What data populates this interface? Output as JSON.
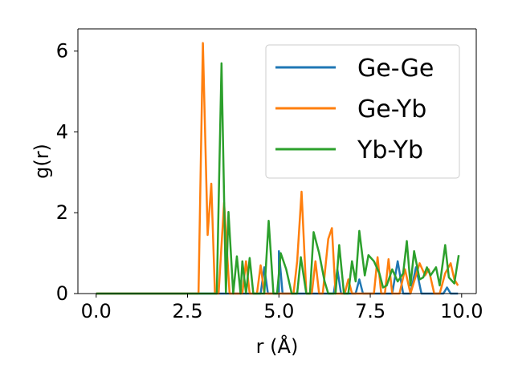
{
  "chart_data": {
    "type": "line",
    "xlabel": "r (Å)",
    "ylabel": "g(r)",
    "xlim": [
      -0.5,
      10.4
    ],
    "ylim": [
      0,
      6.55
    ],
    "xticks": [
      0.0,
      2.5,
      5.0,
      7.5,
      10.0
    ],
    "xtick_labels": [
      "0.0",
      "2.5",
      "5.0",
      "7.5",
      "10.0"
    ],
    "yticks": [
      0,
      2,
      4,
      6
    ],
    "ytick_labels": [
      "0",
      "2",
      "4",
      "6"
    ],
    "grid": false,
    "legend_position": "top-right",
    "series": [
      {
        "name": "Ge-Ge",
        "color": "#1f77b4",
        "points": [
          [
            0,
            0
          ],
          [
            4.5,
            0
          ],
          [
            4.6,
            0.65
          ],
          [
            4.7,
            0
          ],
          [
            5.0,
            0
          ],
          [
            5.0,
            1.05
          ],
          [
            5.1,
            0
          ],
          [
            6.5,
            0
          ],
          [
            6.6,
            0.6
          ],
          [
            6.7,
            0
          ],
          [
            7.1,
            0
          ],
          [
            7.2,
            0.35
          ],
          [
            7.3,
            0
          ],
          [
            8.1,
            0
          ],
          [
            8.25,
            0.8
          ],
          [
            8.4,
            0
          ],
          [
            8.6,
            0
          ],
          [
            8.75,
            0.65
          ],
          [
            8.9,
            0
          ],
          [
            9.5,
            0
          ],
          [
            9.6,
            0.15
          ],
          [
            9.7,
            0
          ],
          [
            9.9,
            0
          ]
        ]
      },
      {
        "name": "Ge-Yb",
        "color": "#ff7f0e",
        "points": [
          [
            0,
            0
          ],
          [
            2.8,
            0
          ],
          [
            2.92,
            6.2
          ],
          [
            3.05,
            1.45
          ],
          [
            3.15,
            2.72
          ],
          [
            3.25,
            0
          ],
          [
            3.35,
            0
          ],
          [
            3.5,
            2.25
          ],
          [
            3.65,
            0
          ],
          [
            4.0,
            0
          ],
          [
            4.1,
            0.8
          ],
          [
            4.2,
            0
          ],
          [
            4.4,
            0
          ],
          [
            4.5,
            0.7
          ],
          [
            4.6,
            0
          ],
          [
            5.4,
            0
          ],
          [
            5.5,
            0.8
          ],
          [
            5.62,
            2.52
          ],
          [
            5.75,
            0
          ],
          [
            5.9,
            0
          ],
          [
            6.0,
            0.8
          ],
          [
            6.1,
            0
          ],
          [
            6.2,
            0
          ],
          [
            6.35,
            1.35
          ],
          [
            6.45,
            1.62
          ],
          [
            6.55,
            0
          ],
          [
            6.8,
            0
          ],
          [
            6.9,
            0.35
          ],
          [
            7.0,
            0
          ],
          [
            7.6,
            0
          ],
          [
            7.7,
            0.9
          ],
          [
            7.8,
            0
          ],
          [
            7.9,
            0
          ],
          [
            8.0,
            0.85
          ],
          [
            8.1,
            0
          ],
          [
            8.3,
            0
          ],
          [
            8.45,
            0.6
          ],
          [
            8.6,
            0
          ],
          [
            8.85,
            0.75
          ],
          [
            9.0,
            0.45
          ],
          [
            9.1,
            0.6
          ],
          [
            9.25,
            0
          ],
          [
            9.4,
            0
          ],
          [
            9.55,
            0.5
          ],
          [
            9.7,
            0.75
          ],
          [
            9.8,
            0.35
          ],
          [
            9.9,
            0.2
          ]
        ]
      },
      {
        "name": "Yb-Yb",
        "color": "#2ca02c",
        "points": [
          [
            0,
            0
          ],
          [
            3.3,
            0
          ],
          [
            3.43,
            5.7
          ],
          [
            3.55,
            0
          ],
          [
            3.62,
            2.02
          ],
          [
            3.75,
            0
          ],
          [
            3.85,
            0.92
          ],
          [
            3.95,
            0
          ],
          [
            4.0,
            0.8
          ],
          [
            4.1,
            0
          ],
          [
            4.2,
            0.88
          ],
          [
            4.3,
            0
          ],
          [
            4.6,
            0
          ],
          [
            4.72,
            1.8
          ],
          [
            4.85,
            0
          ],
          [
            4.95,
            0
          ],
          [
            5.05,
            1.0
          ],
          [
            5.2,
            0.6
          ],
          [
            5.35,
            0
          ],
          [
            5.5,
            0
          ],
          [
            5.6,
            0.9
          ],
          [
            5.75,
            0
          ],
          [
            5.85,
            0
          ],
          [
            5.95,
            1.52
          ],
          [
            6.1,
            1.0
          ],
          [
            6.25,
            0.3
          ],
          [
            6.35,
            0
          ],
          [
            6.55,
            0
          ],
          [
            6.65,
            1.2
          ],
          [
            6.78,
            0
          ],
          [
            6.9,
            0
          ],
          [
            7.0,
            0.8
          ],
          [
            7.1,
            0.3
          ],
          [
            7.2,
            1.55
          ],
          [
            7.35,
            0.45
          ],
          [
            7.45,
            0.95
          ],
          [
            7.6,
            0.8
          ],
          [
            7.75,
            0.5
          ],
          [
            7.85,
            0.15
          ],
          [
            7.95,
            0.2
          ],
          [
            8.1,
            0.6
          ],
          [
            8.25,
            0.3
          ],
          [
            8.4,
            0.5
          ],
          [
            8.5,
            1.3
          ],
          [
            8.6,
            0.2
          ],
          [
            8.7,
            1.05
          ],
          [
            8.85,
            0.35
          ],
          [
            8.95,
            0.4
          ],
          [
            9.05,
            0.65
          ],
          [
            9.15,
            0.45
          ],
          [
            9.3,
            0.65
          ],
          [
            9.4,
            0.2
          ],
          [
            9.55,
            1.2
          ],
          [
            9.65,
            0.4
          ],
          [
            9.8,
            0.25
          ],
          [
            9.92,
            0.95
          ]
        ]
      }
    ]
  }
}
